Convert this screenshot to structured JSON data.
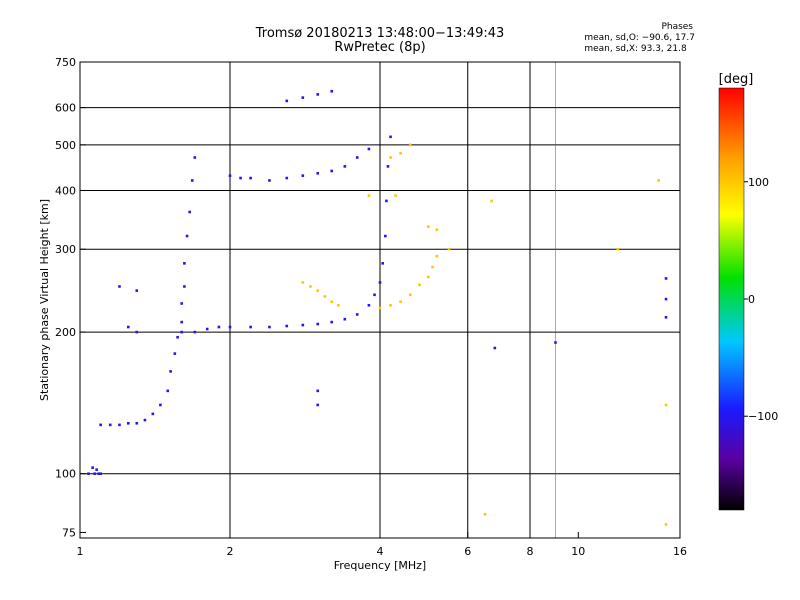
{
  "header": {
    "title": "Tromsø 20180213 13:48:00−13:49:43",
    "subtitle": "RwPretec (8p)"
  },
  "phases": {
    "heading": "Phases",
    "o_line": "mean, sd,O: −90.6, 17.7",
    "x_line": "mean, sd,X:  93.3, 21.8"
  },
  "colorbar": {
    "label": "[deg]",
    "ticks": [
      {
        "value": 100,
        "label": "100"
      },
      {
        "value": 0,
        "label": "0"
      },
      {
        "value": -100,
        "label": "−100"
      }
    ],
    "range": [
      -180,
      180
    ]
  },
  "chart_data": {
    "type": "scatter",
    "title": "Tromsø 20180213 13:48:00−13:49:43",
    "subtitle": "RwPretec (8p)",
    "xlabel": "Frequency [MHz]",
    "ylabel": "Stationary phase Virtual Height [km]",
    "xscale": "log",
    "yscale": "log",
    "xlim": [
      1,
      16
    ],
    "ylim": [
      73,
      750
    ],
    "xticks": [
      {
        "value": 1,
        "label": "1"
      },
      {
        "value": 2,
        "label": "2"
      },
      {
        "value": 4,
        "label": "4"
      },
      {
        "value": 6,
        "label": "6"
      },
      {
        "value": 8,
        "label": "8"
      },
      {
        "value": 10,
        "label": "10"
      },
      {
        "value": 16,
        "label": "16"
      }
    ],
    "xgrid": [
      2,
      4,
      6,
      8
    ],
    "xminor": [
      9
    ],
    "yticks": [
      {
        "value": 75,
        "label": "75"
      },
      {
        "value": 100,
        "label": "100"
      },
      {
        "value": 200,
        "label": "200"
      },
      {
        "value": 300,
        "label": "300"
      },
      {
        "value": 400,
        "label": "400"
      },
      {
        "value": 500,
        "label": "500"
      },
      {
        "value": 600,
        "label": "600"
      },
      {
        "value": 750,
        "label": "750"
      }
    ],
    "ygrid": [
      100,
      200,
      300,
      400,
      500,
      600
    ],
    "grid": true,
    "color_scale": "phase [deg], rainbow from black (−180) through blue, cyan, green, yellow to red (+180)",
    "series": [
      {
        "name": "O",
        "approx_phase": -100,
        "points": [
          [
            1.04,
            100
          ],
          [
            1.07,
            100
          ],
          [
            1.09,
            100
          ],
          [
            1.1,
            100
          ],
          [
            1.06,
            103
          ],
          [
            1.08,
            102
          ],
          [
            1.1,
            127
          ],
          [
            1.15,
            127
          ],
          [
            1.2,
            127
          ],
          [
            1.25,
            128
          ],
          [
            1.3,
            128
          ],
          [
            1.35,
            130
          ],
          [
            1.4,
            134
          ],
          [
            1.45,
            140
          ],
          [
            1.5,
            150
          ],
          [
            1.52,
            165
          ],
          [
            1.55,
            180
          ],
          [
            1.57,
            195
          ],
          [
            1.6,
            210
          ],
          [
            1.6,
            230
          ],
          [
            1.62,
            250
          ],
          [
            1.62,
            280
          ],
          [
            1.64,
            320
          ],
          [
            1.66,
            360
          ],
          [
            1.68,
            420
          ],
          [
            1.7,
            470
          ],
          [
            1.6,
            200
          ],
          [
            1.7,
            200
          ],
          [
            1.8,
            203
          ],
          [
            1.9,
            205
          ],
          [
            2.0,
            205
          ],
          [
            2.2,
            205
          ],
          [
            2.4,
            205
          ],
          [
            2.6,
            206
          ],
          [
            2.8,
            207
          ],
          [
            3.0,
            208
          ],
          [
            3.2,
            210
          ],
          [
            3.4,
            213
          ],
          [
            3.6,
            218
          ],
          [
            3.8,
            228
          ],
          [
            3.9,
            240
          ],
          [
            4.0,
            255
          ],
          [
            4.05,
            280
          ],
          [
            4.1,
            320
          ],
          [
            4.12,
            380
          ],
          [
            4.15,
            450
          ],
          [
            4.2,
            520
          ],
          [
            2.0,
            430
          ],
          [
            2.1,
            425
          ],
          [
            2.2,
            425
          ],
          [
            2.4,
            420
          ],
          [
            2.6,
            425
          ],
          [
            2.8,
            430
          ],
          [
            3.0,
            435
          ],
          [
            3.2,
            440
          ],
          [
            3.4,
            450
          ],
          [
            3.6,
            470
          ],
          [
            3.8,
            490
          ],
          [
            2.6,
            620
          ],
          [
            2.8,
            630
          ],
          [
            3.0,
            640
          ],
          [
            3.2,
            650
          ],
          [
            1.2,
            250
          ],
          [
            1.3,
            245
          ],
          [
            1.25,
            205
          ],
          [
            1.3,
            200
          ],
          [
            3.0,
            150
          ],
          [
            3.0,
            140
          ],
          [
            9.0,
            190
          ],
          [
            6.8,
            185
          ],
          [
            15,
            215
          ],
          [
            15,
            235
          ],
          [
            15,
            260
          ]
        ]
      },
      {
        "name": "X",
        "approx_phase": 100,
        "points": [
          [
            2.8,
            255
          ],
          [
            2.9,
            250
          ],
          [
            3.0,
            245
          ],
          [
            3.1,
            238
          ],
          [
            3.2,
            232
          ],
          [
            3.3,
            228
          ],
          [
            4.0,
            225
          ],
          [
            4.2,
            228
          ],
          [
            4.4,
            232
          ],
          [
            4.6,
            240
          ],
          [
            4.8,
            252
          ],
          [
            5.0,
            262
          ],
          [
            5.1,
            275
          ],
          [
            5.2,
            290
          ],
          [
            4.2,
            470
          ],
          [
            4.4,
            480
          ],
          [
            4.6,
            500
          ],
          [
            4.3,
            390
          ],
          [
            3.8,
            390
          ],
          [
            5.2,
            330
          ],
          [
            5.0,
            335
          ],
          [
            5.5,
            300
          ],
          [
            6.7,
            380
          ],
          [
            6.5,
            82
          ],
          [
            12,
            300
          ],
          [
            14.5,
            420
          ],
          [
            15,
            140
          ],
          [
            15,
            78
          ]
        ]
      }
    ]
  }
}
